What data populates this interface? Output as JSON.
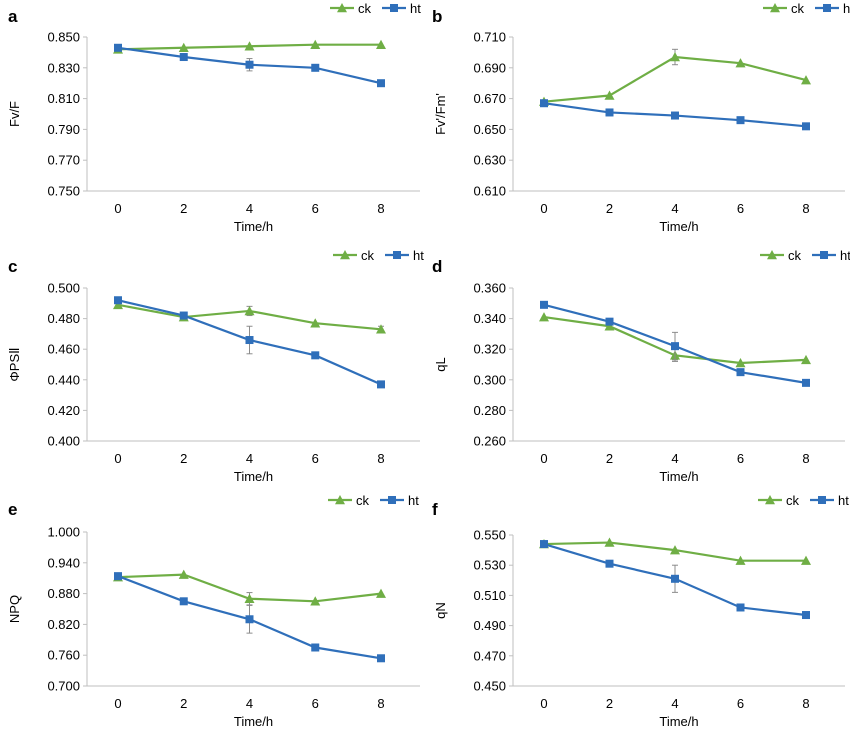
{
  "chart_data": [
    {
      "panel": "a",
      "type": "line",
      "x": [
        0,
        2,
        4,
        6,
        8
      ],
      "ylim": [
        0.75,
        0.85
      ],
      "yticks": [
        "0.750",
        "0.770",
        "0.790",
        "0.810",
        "0.830",
        "0.850"
      ],
      "xlabel": "Time/h",
      "ylabel": "Fv/F",
      "legend": "top-right",
      "grid": false,
      "series": [
        {
          "name": "ck",
          "color": "#6fae45",
          "marker": "triangle",
          "values": [
            0.842,
            0.843,
            0.844,
            0.845,
            0.845
          ],
          "err": [
            0,
            0,
            0,
            0,
            0
          ]
        },
        {
          "name": "ht",
          "color": "#2f6fba",
          "marker": "square",
          "values": [
            0.843,
            0.837,
            0.832,
            0.83,
            0.82
          ],
          "err": [
            0,
            0,
            0.004,
            0,
            0
          ]
        }
      ]
    },
    {
      "panel": "b",
      "type": "line",
      "x": [
        0,
        2,
        4,
        6,
        8
      ],
      "ylim": [
        0.61,
        0.71
      ],
      "yticks": [
        "0.610",
        "0.630",
        "0.650",
        "0.670",
        "0.690",
        "0.710"
      ],
      "xlabel": "Time/h",
      "ylabel": "Fv'/Fm'",
      "legend": "top-right",
      "grid": false,
      "series": [
        {
          "name": "ck",
          "color": "#6fae45",
          "marker": "triangle",
          "values": [
            0.668,
            0.672,
            0.697,
            0.693,
            0.682
          ],
          "err": [
            0,
            0,
            0.005,
            0,
            0
          ]
        },
        {
          "name": "ht",
          "color": "#2f6fba",
          "marker": "square",
          "values": [
            0.667,
            0.661,
            0.659,
            0.656,
            0.652
          ],
          "err": [
            0,
            0,
            0,
            0,
            0
          ]
        }
      ]
    },
    {
      "panel": "c",
      "type": "line",
      "x": [
        0,
        2,
        4,
        6,
        8
      ],
      "ylim": [
        0.4,
        0.5
      ],
      "yticks": [
        "0.400",
        "0.420",
        "0.440",
        "0.460",
        "0.480",
        "0.500"
      ],
      "xlabel": "Time/h",
      "ylabel": "ΦPSⅡ",
      "legend": "top-right",
      "grid": false,
      "series": [
        {
          "name": "ck",
          "color": "#6fae45",
          "marker": "triangle",
          "values": [
            0.489,
            0.481,
            0.485,
            0.477,
            0.473
          ],
          "err": [
            0,
            0,
            0.003,
            0,
            0.002
          ]
        },
        {
          "name": "ht",
          "color": "#2f6fba",
          "marker": "square",
          "values": [
            0.492,
            0.482,
            0.466,
            0.456,
            0.437
          ],
          "err": [
            0,
            0,
            0.009,
            0,
            0
          ]
        }
      ]
    },
    {
      "panel": "d",
      "type": "line",
      "x": [
        0,
        2,
        4,
        6,
        8
      ],
      "ylim": [
        0.26,
        0.36
      ],
      "yticks": [
        "0.260",
        "0.280",
        "0.300",
        "0.320",
        "0.340",
        "0.360"
      ],
      "xlabel": "Time/h",
      "ylabel": "qL",
      "legend": "top-right",
      "grid": false,
      "series": [
        {
          "name": "ck",
          "color": "#6fae45",
          "marker": "triangle",
          "values": [
            0.341,
            0.335,
            0.316,
            0.311,
            0.313
          ],
          "err": [
            0,
            0,
            0.004,
            0,
            0
          ]
        },
        {
          "name": "ht",
          "color": "#2f6fba",
          "marker": "square",
          "values": [
            0.349,
            0.338,
            0.322,
            0.305,
            0.298
          ],
          "err": [
            0,
            0,
            0.009,
            0,
            0
          ]
        }
      ]
    },
    {
      "panel": "e",
      "type": "line",
      "x": [
        0,
        2,
        4,
        6,
        8
      ],
      "ylim": [
        0.7,
        1.0
      ],
      "yticks": [
        "0.700",
        "0.760",
        "0.820",
        "0.880",
        "0.940",
        "1.000"
      ],
      "xlabel": "Time/h",
      "ylabel": "NPQ",
      "legend": "top-right",
      "grid": false,
      "series": [
        {
          "name": "ck",
          "color": "#6fae45",
          "marker": "triangle",
          "values": [
            0.912,
            0.917,
            0.87,
            0.865,
            0.88
          ],
          "err": [
            0,
            0,
            0.012,
            0,
            0
          ]
        },
        {
          "name": "ht",
          "color": "#2f6fba",
          "marker": "square",
          "values": [
            0.914,
            0.865,
            0.83,
            0.775,
            0.754
          ],
          "err": [
            0,
            0,
            0.027,
            0,
            0
          ]
        }
      ]
    },
    {
      "panel": "f",
      "type": "line",
      "x": [
        0,
        2,
        4,
        6,
        8
      ],
      "ylim": [
        0.45,
        0.55
      ],
      "yticks": [
        "0.450",
        "0.470",
        "0.490",
        "0.510",
        "0.530",
        "0.550"
      ],
      "xlabel": "Time/h",
      "ylabel": "qN",
      "legend": "top-right",
      "grid": false,
      "series": [
        {
          "name": "ck",
          "color": "#6fae45",
          "marker": "triangle",
          "values": [
            0.544,
            0.545,
            0.54,
            0.533,
            0.533
          ],
          "err": [
            0,
            0,
            0,
            0,
            0
          ]
        },
        {
          "name": "ht",
          "color": "#2f6fba",
          "marker": "square",
          "values": [
            0.544,
            0.531,
            0.521,
            0.502,
            0.497
          ],
          "err": [
            0,
            0,
            0.009,
            0,
            0
          ]
        }
      ]
    }
  ]
}
